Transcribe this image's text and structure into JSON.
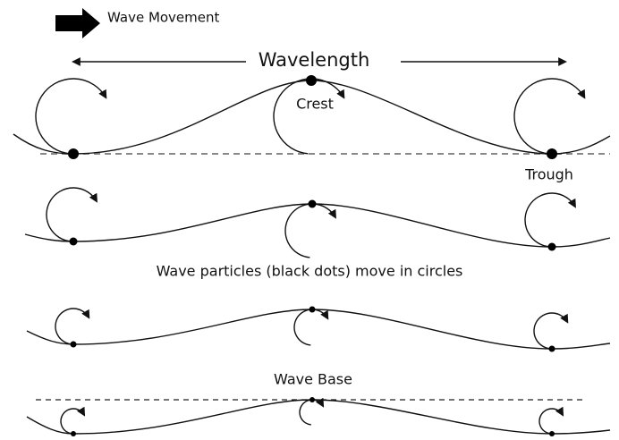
{
  "labels": {
    "wave_movement": "Wave Movement",
    "wavelength": "Wavelength",
    "crest": "Crest",
    "trough": "Trough",
    "caption": "Wave particles (black dots) move in circles",
    "wave_base": "Wave Base"
  }
}
